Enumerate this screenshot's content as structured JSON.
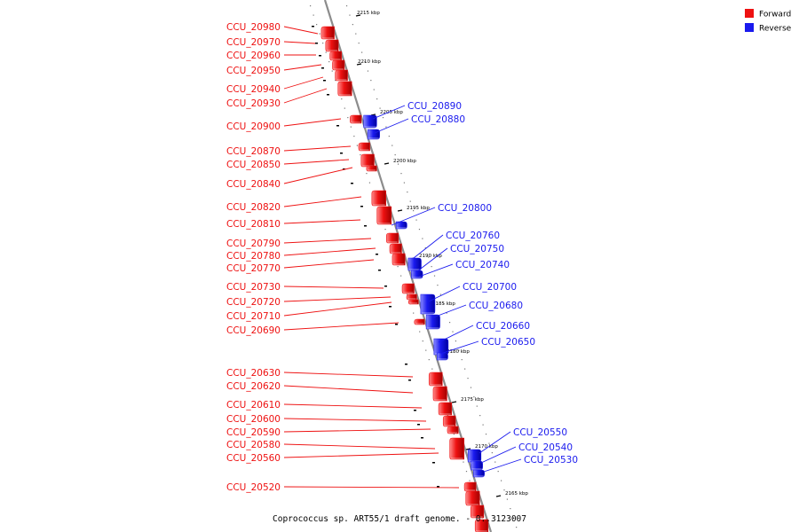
{
  "colors": {
    "forward": "#ee1111",
    "reverse": "#1a1aee",
    "backbone": "#8c8c8c"
  },
  "legend": {
    "forward_label": "Forward",
    "reverse_label": "Reverse"
  },
  "caption": "Coprococcus sp. ART55/1 draft genome. - 0..3123007",
  "kbp_ticks": [
    "2215 kbp",
    "2210 kbp",
    "2205 kbp",
    "2200 kbp",
    "2195 kbp",
    "2190 kbp",
    "2185 kbp",
    "2180 kbp",
    "2175 kbp",
    "2170 kbp",
    "2165 kbp"
  ],
  "forward_genes": [
    "CCU_20980",
    "CCU_20970",
    "CCU_20960",
    "CCU_20950",
    "CCU_20940",
    "CCU_20930",
    "CCU_20900",
    "CCU_20870",
    "CCU_20850",
    "CCU_20840",
    "CCU_20820",
    "CCU_20810",
    "CCU_20790",
    "CCU_20780",
    "CCU_20770",
    "CCU_20730",
    "CCU_20720",
    "CCU_20710",
    "CCU_20690",
    "CCU_20630",
    "CCU_20620",
    "CCU_20610",
    "CCU_20600",
    "CCU_20590",
    "CCU_20580",
    "CCU_20560",
    "CCU_20520"
  ],
  "reverse_genes": [
    "CCU_20890",
    "CCU_20880",
    "CCU_20800",
    "CCU_20760",
    "CCU_20750",
    "CCU_20740",
    "CCU_20700",
    "CCU_20680",
    "CCU_20660",
    "CCU_20650",
    "CCU_20550",
    "CCU_20540",
    "CCU_20530"
  ]
}
